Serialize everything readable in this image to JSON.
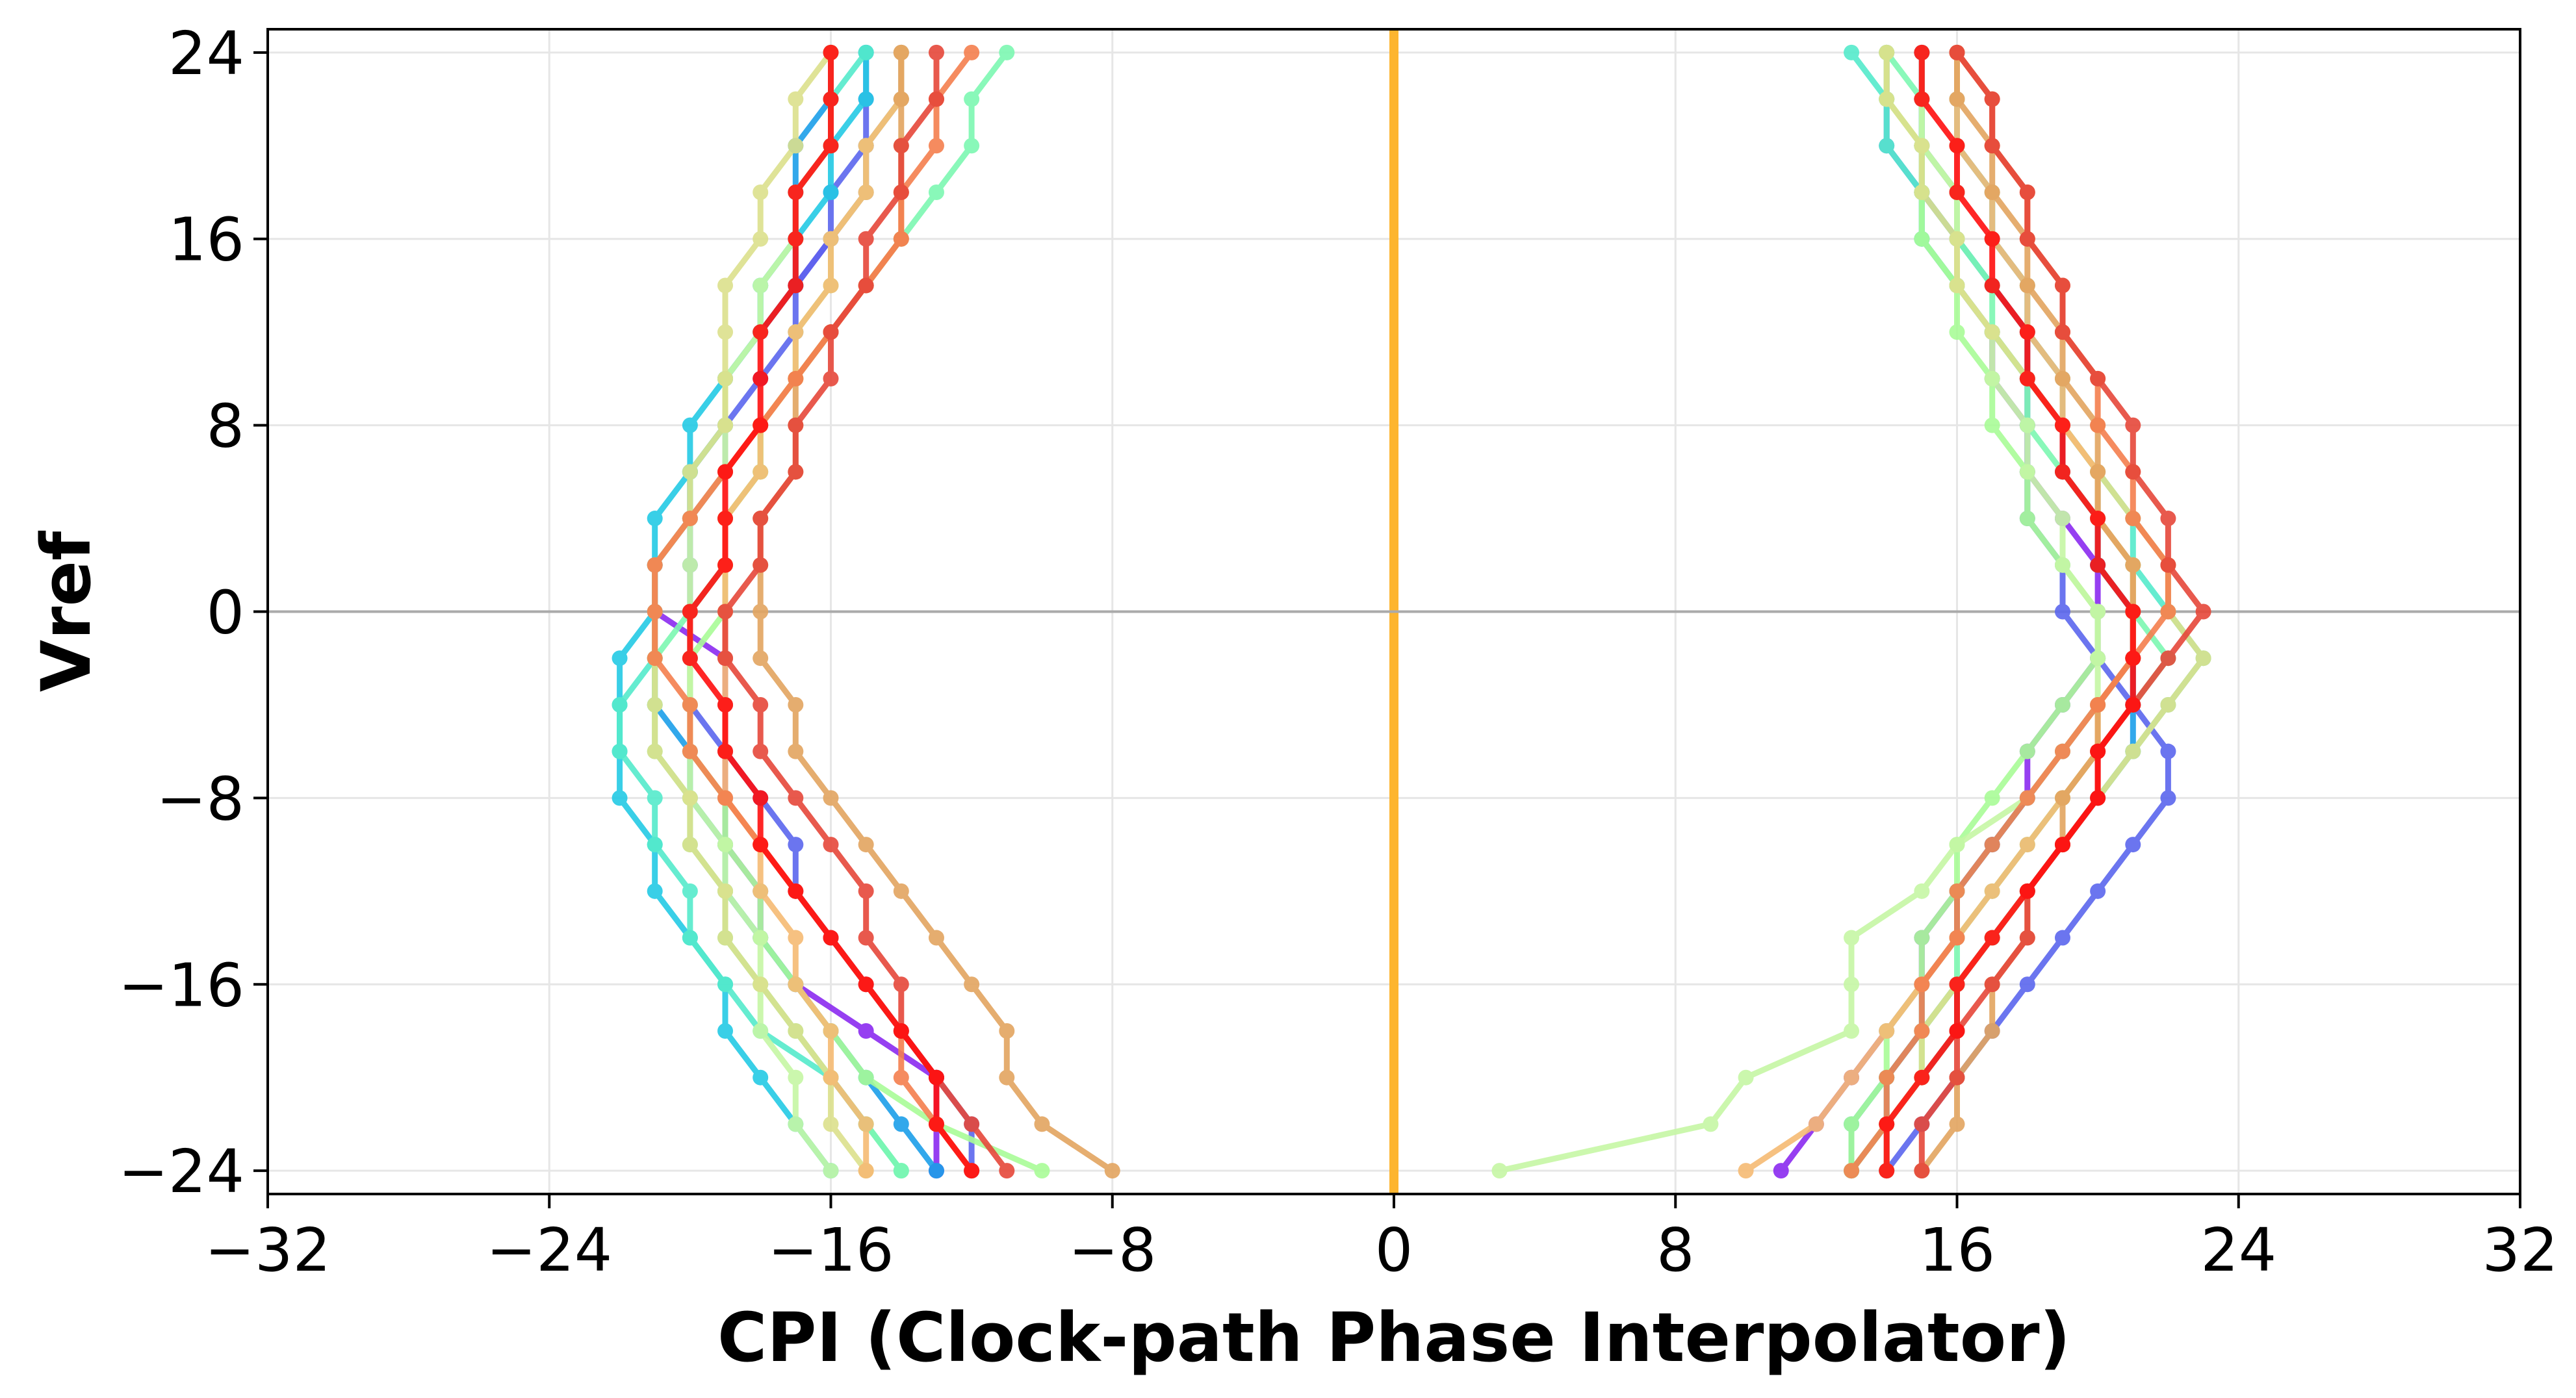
{
  "chart_data": {
    "type": "line",
    "title": "",
    "xlabel": "CPI (Clock-path Phase Interpolator)",
    "ylabel": "Vref",
    "xlim": [
      -32,
      32
    ],
    "ylim": [
      -25,
      25
    ],
    "xticks": [
      -32,
      -24,
      -16,
      -8,
      0,
      8,
      16,
      24,
      32
    ],
    "yticks": [
      -24,
      -16,
      -8,
      0,
      8,
      16,
      24
    ],
    "xtick_labels": [
      "−32",
      "−24",
      "−16",
      "−8",
      "0",
      "8",
      "16",
      "24",
      "32"
    ],
    "ytick_labels": [
      "−24",
      "−16",
      "−8",
      "0",
      "8",
      "16",
      "24"
    ],
    "grid": true,
    "legend": "none",
    "reference_lines": [
      {
        "orientation": "vertical",
        "value": 0,
        "color": "#FDB52F"
      },
      {
        "orientation": "horizontal",
        "value": 0,
        "color": "#AAAAAA"
      }
    ],
    "y": [
      24,
      22,
      20,
      18,
      16,
      14,
      12,
      10,
      8,
      6,
      4,
      2,
      0,
      -2,
      -4,
      -6,
      -8,
      -10,
      -12,
      -14,
      -16,
      -18,
      -20,
      -22,
      -24
    ],
    "series": [
      {
        "color": "#8B2BF0",
        "left": [
          -14,
          -14,
          -15,
          -15,
          -16,
          -17,
          -18,
          -19,
          -19,
          -20,
          -20,
          -21,
          -21,
          -19,
          -19,
          -19,
          -19,
          -19,
          -18,
          -18,
          -17,
          -15,
          -13,
          -13,
          -13
        ],
        "right": [
          15,
          15,
          15,
          16,
          16,
          16,
          17,
          17,
          18,
          18,
          19,
          20,
          20,
          20,
          19,
          18,
          18,
          17,
          16,
          15,
          15,
          14,
          13,
          12,
          11
        ]
      },
      {
        "color": "#5B67EE",
        "left": [
          -15,
          -15,
          -15,
          -16,
          -16,
          -17,
          -17,
          -18,
          -19,
          -19,
          -20,
          -20,
          -20,
          -20,
          -20,
          -19,
          -18,
          -17,
          -17,
          -16,
          -15,
          -14,
          -13,
          -12,
          -12
        ],
        "right": [
          14,
          14,
          14,
          15,
          15,
          16,
          17,
          18,
          18,
          18,
          18,
          19,
          19,
          20,
          21,
          22,
          22,
          21,
          20,
          19,
          18,
          17,
          16,
          15,
          14
        ]
      },
      {
        "color": "#1C9FE9",
        "left": [
          -16,
          -16,
          -17,
          -17,
          -17,
          -18,
          -18,
          -19,
          -19,
          -20,
          -20,
          -21,
          -21,
          -21,
          -21,
          -20,
          -20,
          -19,
          -19,
          -18,
          -17,
          -16,
          -15,
          -14,
          -13
        ],
        "right": [
          15,
          15,
          15,
          15,
          16,
          17,
          18,
          18,
          19,
          19,
          20,
          20,
          21,
          21,
          21,
          21,
          20,
          19,
          18,
          17,
          16,
          15,
          14,
          13,
          13
        ]
      },
      {
        "color": "#24CAE5",
        "left": [
          -15,
          -15,
          -16,
          -16,
          -17,
          -17,
          -18,
          -19,
          -20,
          -20,
          -21,
          -21,
          -21,
          -22,
          -22,
          -22,
          -22,
          -21,
          -21,
          -20,
          -19,
          -19,
          -18,
          -17,
          -16
        ],
        "right": [
          16,
          16,
          16,
          17,
          17,
          18,
          18,
          19,
          19,
          20,
          20,
          20,
          21,
          21,
          20,
          19,
          18,
          17,
          16,
          16,
          15,
          15,
          14,
          14,
          14
        ]
      },
      {
        "color": "#55EBCB",
        "left": [
          -15,
          -16,
          -16,
          -17,
          -17,
          -18,
          -18,
          -19,
          -19,
          -20,
          -20,
          -21,
          -21,
          -21,
          -22,
          -22,
          -21,
          -21,
          -20,
          -20,
          -19,
          -18,
          -16,
          -15,
          -14
        ],
        "right": [
          13,
          14,
          14,
          15,
          15,
          16,
          17,
          18,
          19,
          20,
          21,
          21,
          22,
          23,
          22,
          21,
          20,
          19,
          18,
          17,
          16,
          16,
          15,
          14,
          13
        ]
      },
      {
        "color": "#7DF8B2",
        "left": [
          -11,
          -12,
          -12,
          -13,
          -14,
          -15,
          -16,
          -17,
          -18,
          -18,
          -19,
          -19,
          -20,
          -21,
          -21,
          -21,
          -20,
          -20,
          -19,
          -19,
          -18,
          -17,
          -16,
          -15,
          -14
        ],
        "right": [
          14,
          15,
          15,
          16,
          16,
          17,
          17,
          18,
          18,
          19,
          20,
          21,
          21,
          22,
          21,
          20,
          19,
          18,
          17,
          16,
          16,
          15,
          15,
          14,
          13
        ]
      },
      {
        "color": "#A9FC97",
        "left": [
          -14,
          -14,
          -15,
          -15,
          -16,
          -16,
          -17,
          -17,
          -18,
          -18,
          -19,
          -19,
          -19,
          -20,
          -20,
          -20,
          -19,
          -19,
          -18,
          -18,
          -17,
          -16,
          -15,
          -13,
          -10
        ],
        "right": [
          14,
          14,
          15,
          15,
          15,
          16,
          16,
          17,
          17,
          18,
          18,
          19,
          20,
          20,
          19,
          18,
          17,
          16,
          16,
          15,
          15,
          14,
          14,
          13,
          13
        ]
      },
      {
        "color": "#C6F7A5",
        "left": [
          -16,
          -16,
          -16,
          -17,
          -17,
          -18,
          -18,
          -19,
          -19,
          -19,
          -20,
          -20,
          -20,
          -20,
          -20,
          -20,
          -20,
          -19,
          -19,
          -18,
          -18,
          -18,
          -17,
          -17,
          -16
        ],
        "right": [
          15,
          15,
          15,
          16,
          16,
          16,
          17,
          17,
          18,
          18,
          19,
          19,
          20,
          20,
          20,
          19,
          18,
          16,
          15,
          13,
          13,
          13,
          10,
          9,
          3
        ]
      },
      {
        "color": "#DCE08C",
        "left": [
          -16,
          -17,
          -17,
          -18,
          -18,
          -19,
          -19,
          -19,
          -19,
          -20,
          -20,
          -21,
          -21,
          -21,
          -21,
          -21,
          -20,
          -20,
          -19,
          -19,
          -18,
          -17,
          -16,
          -16,
          -15
        ],
        "right": [
          14,
          14,
          15,
          15,
          16,
          16,
          17,
          18,
          19,
          20,
          21,
          22,
          22,
          23,
          22,
          21,
          20,
          19,
          18,
          17,
          16,
          15,
          15,
          14,
          14
        ]
      },
      {
        "color": "#F6BB74",
        "left": [
          -14,
          -14,
          -15,
          -15,
          -16,
          -16,
          -17,
          -17,
          -18,
          -18,
          -19,
          -19,
          -19,
          -19,
          -19,
          -19,
          -19,
          -18,
          -18,
          -17,
          -17,
          -16,
          -16,
          -15,
          -15
        ],
        "right": [
          16,
          16,
          16,
          17,
          17,
          18,
          18,
          19,
          19,
          20,
          20,
          21,
          21,
          21,
          20,
          20,
          19,
          18,
          17,
          16,
          15,
          14,
          13,
          12,
          10
        ]
      },
      {
        "color": "#E3A560",
        "left": [
          -14,
          -14,
          -14,
          -14,
          -14,
          -15,
          -16,
          -17,
          -17,
          -17,
          -18,
          -18,
          -18,
          -18,
          -17,
          -17,
          -16,
          -15,
          -14,
          -13,
          -12,
          -11,
          -11,
          -10,
          -8
        ],
        "right": [
          16,
          16,
          17,
          17,
          18,
          18,
          19,
          19,
          20,
          20,
          20,
          21,
          21,
          21,
          20,
          20,
          19,
          19,
          18,
          18,
          17,
          17,
          16,
          16,
          15
        ]
      },
      {
        "color": "#F47F4E",
        "left": [
          -12,
          -13,
          -13,
          -14,
          -14,
          -15,
          -16,
          -17,
          -18,
          -19,
          -20,
          -21,
          -21,
          -21,
          -20,
          -20,
          -19,
          -18,
          -17,
          -16,
          -15,
          -14,
          -14,
          -13,
          -12
        ],
        "right": [
          16,
          17,
          17,
          18,
          18,
          19,
          19,
          20,
          20,
          21,
          21,
          22,
          22,
          21,
          20,
          19,
          18,
          17,
          16,
          16,
          15,
          15,
          14,
          14,
          13
        ]
      },
      {
        "color": "#E6483A",
        "left": [
          -13,
          -13,
          -14,
          -14,
          -15,
          -15,
          -16,
          -16,
          -17,
          -17,
          -18,
          -18,
          -19,
          -19,
          -18,
          -18,
          -17,
          -16,
          -15,
          -15,
          -14,
          -14,
          -13,
          -12,
          -11
        ],
        "right": [
          16,
          17,
          17,
          18,
          18,
          19,
          19,
          20,
          21,
          21,
          22,
          22,
          23,
          22,
          21,
          20,
          20,
          19,
          18,
          18,
          17,
          16,
          16,
          15,
          15
        ]
      },
      {
        "color": "#FF0F0F",
        "left": [
          -16,
          -16,
          -16,
          -17,
          -17,
          -17,
          -18,
          -18,
          -18,
          -19,
          -19,
          -19,
          -20,
          -20,
          -19,
          -19,
          -18,
          -18,
          -17,
          -16,
          -15,
          -14,
          -13,
          -13,
          -12
        ],
        "right": [
          15,
          15,
          16,
          16,
          17,
          17,
          18,
          18,
          19,
          19,
          20,
          20,
          21,
          21,
          21,
          20,
          20,
          19,
          18,
          17,
          16,
          16,
          15,
          14,
          14
        ]
      }
    ]
  }
}
